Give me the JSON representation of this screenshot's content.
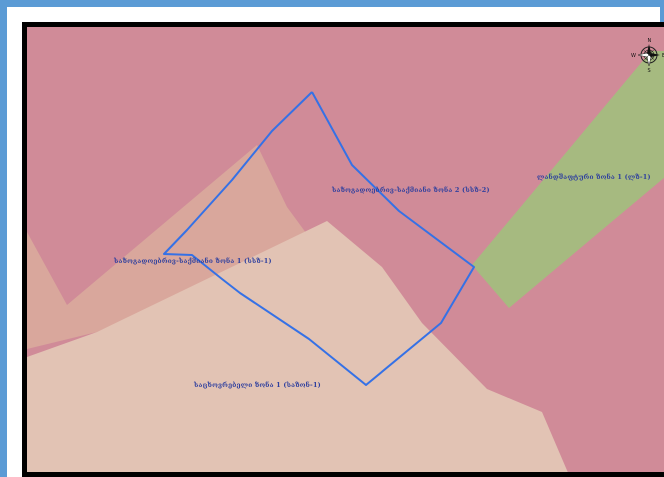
{
  "map": {
    "colors": {
      "frame_border": "#5b9bd5",
      "map_border": "#000000",
      "zone_pink": "#d08b98",
      "zone_tan": "#d9a79c",
      "zone_light": "#e2c3b4",
      "zone_green": "#a6ba80",
      "boundary_line": "#3571e6",
      "label_text": "#2e3f9e"
    },
    "labels": {
      "zone_ss2": "საზოგადოებრივ-საქმიანი ზონა 2 (სსზ-2)",
      "zone_ss1": "საზოგადოებრივ-საქმიანი ზონა 1 (სსზ-1)",
      "zone_landscape1": "ლანდშაფტური ზონა 1 (ლზ-1)",
      "zone_residential1": "საცხოვრებელი ზონა 1 (საზონ-1)"
    },
    "compass": {
      "icon": "compass-rose-icon",
      "north": "N",
      "south": "S",
      "east": "E",
      "west": "W"
    }
  }
}
